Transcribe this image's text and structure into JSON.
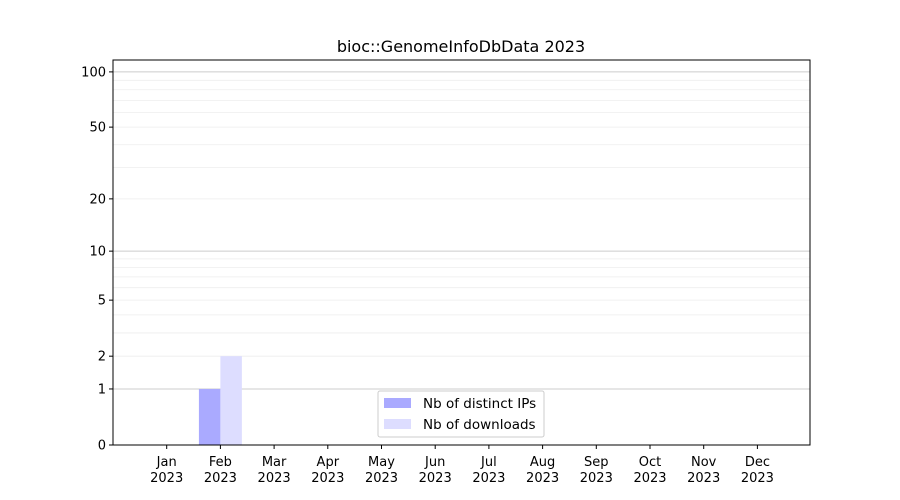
{
  "chart_data": {
    "type": "bar",
    "title": "bioc::GenomeInfoDbData 2023",
    "xlabel": "",
    "ylabel": "",
    "yscale": "symlog (log of 1+y)",
    "ylim": [
      0,
      116
    ],
    "yticks": [
      0,
      1,
      2,
      5,
      10,
      20,
      50,
      100
    ],
    "grid": true,
    "legend_position": "lower-center",
    "categories": [
      "Jan\n2023",
      "Feb\n2023",
      "Mar\n2023",
      "Apr\n2023",
      "May\n2023",
      "Jun\n2023",
      "Jul\n2023",
      "Aug\n2023",
      "Sep\n2023",
      "Oct\n2023",
      "Nov\n2023",
      "Dec\n2023"
    ],
    "series": [
      {
        "name": "Nb of distinct IPs",
        "color": "#aaaaff",
        "values": [
          0,
          1,
          0,
          0,
          0,
          0,
          0,
          0,
          0,
          0,
          0,
          0
        ]
      },
      {
        "name": "Nb of downloads",
        "color": "#ddddff",
        "values": [
          0,
          2,
          0,
          0,
          0,
          0,
          0,
          0,
          0,
          0,
          0,
          0
        ]
      }
    ]
  }
}
